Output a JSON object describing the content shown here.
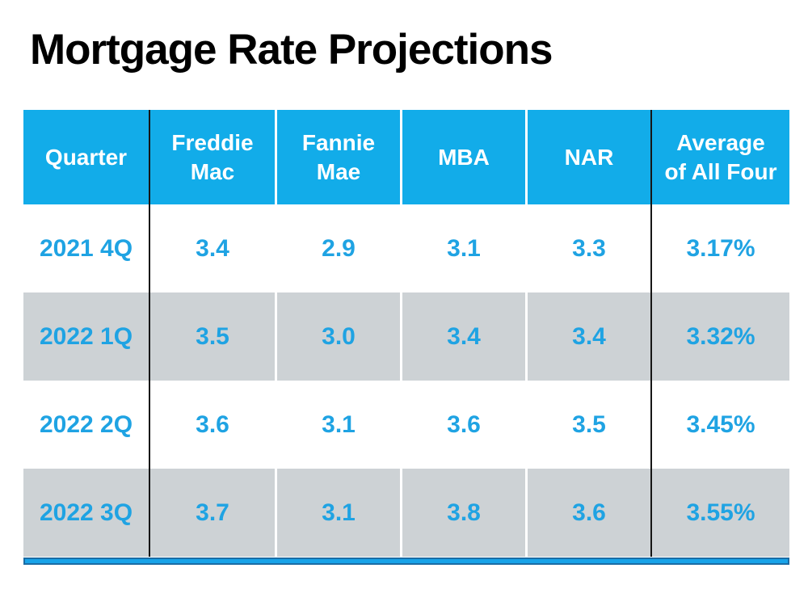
{
  "slide": {
    "title": "Mortgage Rate Projections"
  },
  "table": {
    "columns": [
      "Quarter",
      "Freddie\nMac",
      "Fannie\nMae",
      "MBA",
      "NAR",
      "Average\nof All Four"
    ],
    "rows": [
      {
        "cells": [
          "2021 4Q",
          "3.4",
          "2.9",
          "3.1",
          "3.3",
          "3.17%"
        ]
      },
      {
        "cells": [
          "2022 1Q",
          "3.5",
          "3.0",
          "3.4",
          "3.4",
          "3.32%"
        ]
      },
      {
        "cells": [
          "2022 2Q",
          "3.6",
          "3.1",
          "3.6",
          "3.5",
          "3.45%"
        ]
      },
      {
        "cells": [
          "2022 3Q",
          "3.7",
          "3.1",
          "3.8",
          "3.6",
          "3.55%"
        ]
      }
    ]
  },
  "colors": {
    "header_background": "#12ACE9",
    "header_text": "#FFFFFF",
    "body_text_blue": "#1FA3E3",
    "alt_row_gray": "#CDD2D5",
    "divider_black": "#161616",
    "accent_bar_fill": "#18A3E9",
    "accent_bar_border": "#1B6CA4",
    "title_text": "#000000"
  },
  "chart_data": {
    "type": "table",
    "title": "Mortgage Rate Projections",
    "columns": [
      "Quarter",
      "Freddie Mac",
      "Fannie Mae",
      "MBA",
      "NAR",
      "Average of All Four"
    ],
    "rows": [
      [
        "2021 4Q",
        3.4,
        2.9,
        3.1,
        3.3,
        "3.17%"
      ],
      [
        "2022 1Q",
        3.5,
        3.0,
        3.4,
        3.4,
        "3.32%"
      ],
      [
        "2022 2Q",
        3.6,
        3.1,
        3.6,
        3.5,
        "3.45%"
      ],
      [
        "2022 3Q",
        3.7,
        3.1,
        3.8,
        3.6,
        "3.55%"
      ]
    ]
  }
}
